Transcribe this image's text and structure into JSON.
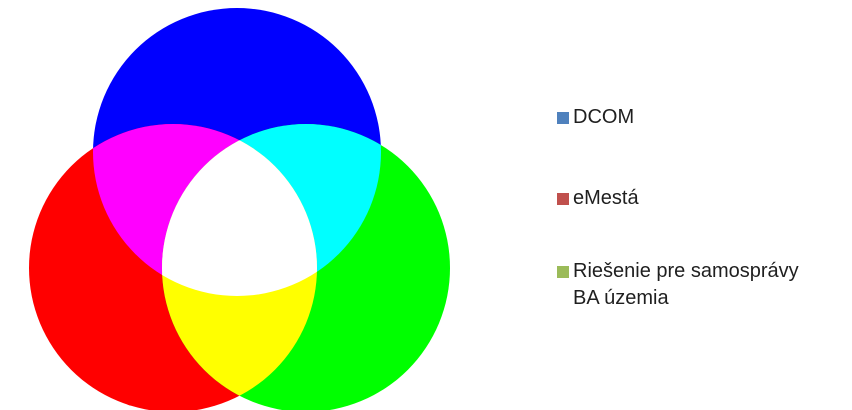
{
  "diagram": {
    "type": "rgb-additive-venn",
    "circles": [
      {
        "name": "top",
        "fill": "#0000ff"
      },
      {
        "name": "left",
        "fill": "#ff0000"
      },
      {
        "name": "right",
        "fill": "#00ff00"
      }
    ],
    "overlaps": {
      "top_left": "#ff00ff",
      "top_right": "#00ffff",
      "left_right": "#ffff00",
      "center": "#ffffff"
    }
  },
  "legend": {
    "items": [
      {
        "label": "DCOM",
        "color": "#4f81bd"
      },
      {
        "label": "eMestá",
        "color": "#c0504d"
      },
      {
        "label": "Riešenie pre samosprávy\nBA územia",
        "color": "#9bbb59"
      }
    ]
  }
}
